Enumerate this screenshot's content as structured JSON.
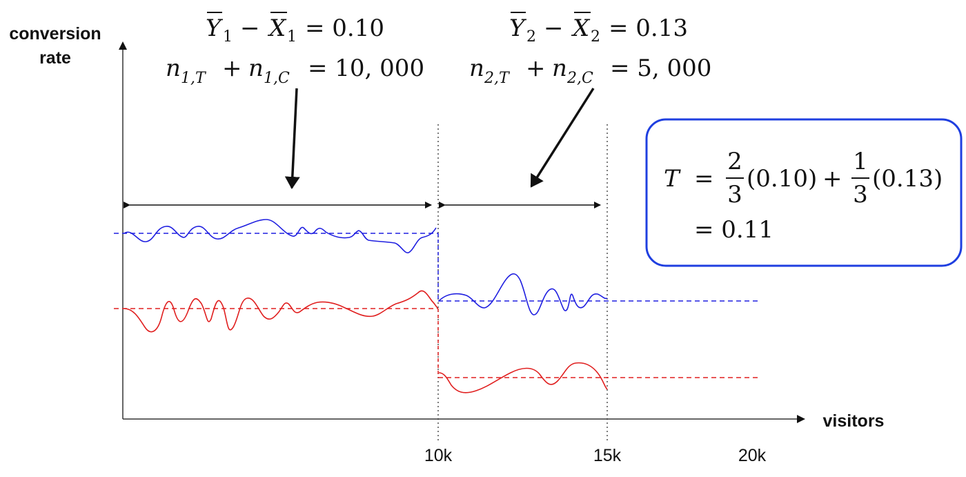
{
  "axis": {
    "y_label_line1": "conversion",
    "y_label_line2": "rate",
    "x_label": "visitors",
    "ticks": [
      "10k",
      "15k",
      "20k"
    ]
  },
  "period1": {
    "y": "Y",
    "sub1": "1",
    "minus": "−",
    "x": "X",
    "sub2": "1",
    "eq": "= 0.10",
    "n_a": "n",
    "n_a_sub": "1,T",
    "plus": "+",
    "n_b": "n",
    "n_b_sub": "1,C",
    "n_eq": "= 10, 000"
  },
  "period2": {
    "y": "Y",
    "sub1": "2",
    "minus": "−",
    "x": "X",
    "sub2": "2",
    "eq": "= 0.13",
    "n_a": "n",
    "n_a_sub": "2,T",
    "plus": "+",
    "n_b": "n",
    "n_b_sub": "2,C",
    "n_eq": "= 5, 000"
  },
  "formula": {
    "lhs": "T",
    "eq": "=",
    "frac1_num": "2",
    "frac1_den": "3",
    "val1": "(0.10)",
    "plus": "+",
    "frac2_num": "1",
    "frac2_den": "3",
    "val2": "(0.13)",
    "result": "= 0.11"
  },
  "colors": {
    "treatment": "#1f1fe0",
    "control": "#e01f1f",
    "box": "#1f3fe0"
  }
}
